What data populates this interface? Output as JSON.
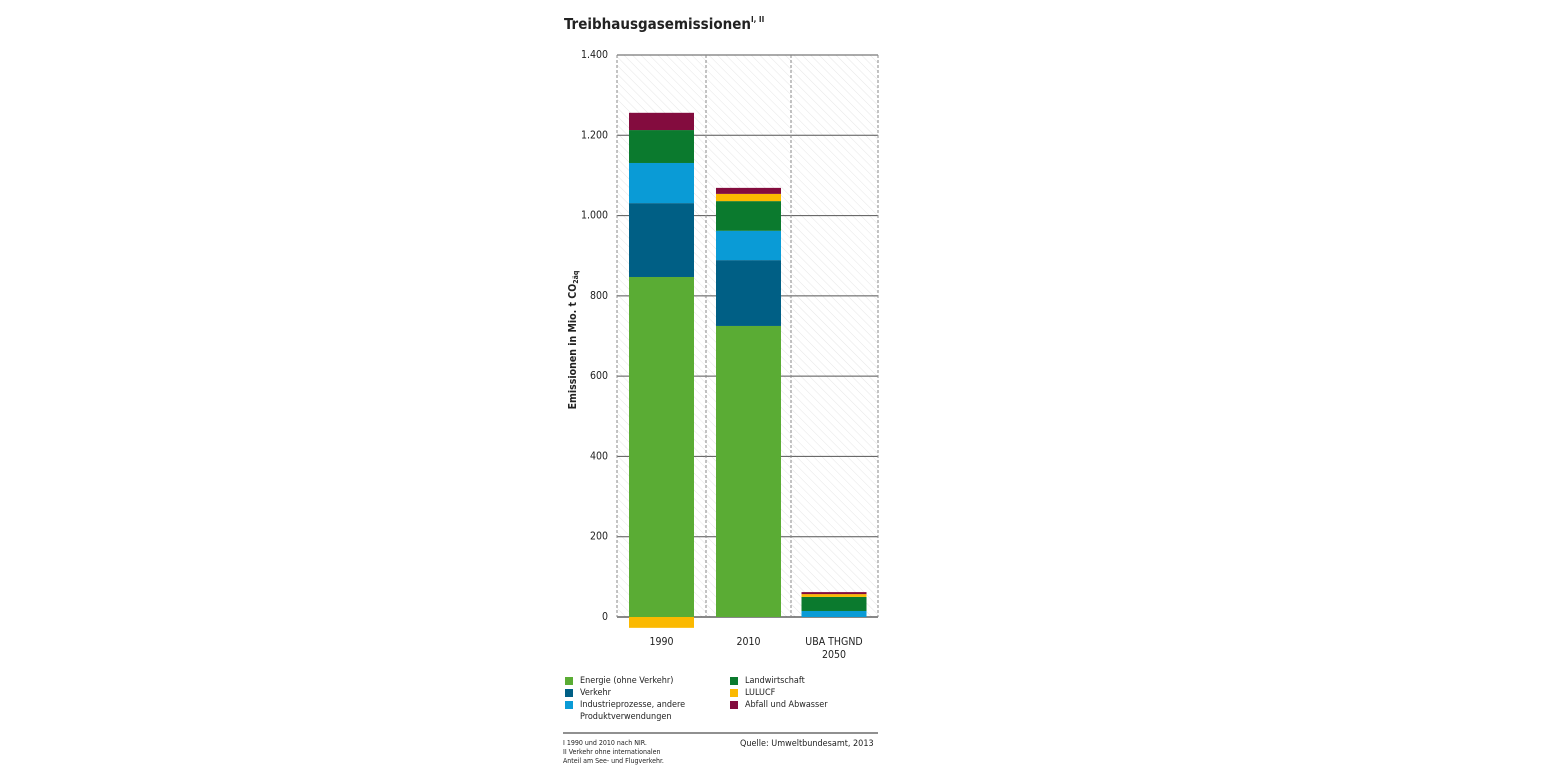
{
  "chart_data": {
    "type": "stacked-bar",
    "title": "Treibhausgasemissionen",
    "title_sup": "I, II",
    "ylabel": "Emissionen in Mio. t CO",
    "ylabel_sub": "2äq",
    "categories": [
      "1990",
      "2010",
      "UBA THGND 2050"
    ],
    "series": [
      {
        "name": "Energie (ohne Verkehr)",
        "color": "#5aac34",
        "values": [
          847,
          725,
          0
        ]
      },
      {
        "name": "Verkehr",
        "color": "#005f85",
        "values": [
          184,
          164,
          0
        ]
      },
      {
        "name": "Industrieprozesse, andere Produktverwendungen",
        "color": "#0a9bd6",
        "values": [
          100,
          73,
          15
        ]
      },
      {
        "name": "Landwirtschaft",
        "color": "#0b7a2e",
        "values": [
          82,
          74,
          35
        ]
      },
      {
        "name": "LULUCF",
        "color": "#fbb900",
        "values": [
          -27,
          18,
          7
        ]
      },
      {
        "name": "Abfall und Abwasser",
        "color": "#830c3e",
        "values": [
          43,
          15,
          5
        ]
      }
    ],
    "ylim": [
      0,
      1400
    ],
    "yticks": [
      0,
      200,
      400,
      600,
      800,
      {
        "value": 1000,
        "label": "1.000"
      },
      {
        "value": 1200,
        "label": "1.200"
      },
      {
        "value": 1400,
        "label": "1.400"
      }
    ],
    "grid": true,
    "footnotes": [
      "I  1990 und 2010 nach NIR.",
      "II  Verkehr ohne internationalen Anteil am See- und Flugverkehr."
    ],
    "source": "Quelle: Umweltbundesamt, 2013"
  }
}
